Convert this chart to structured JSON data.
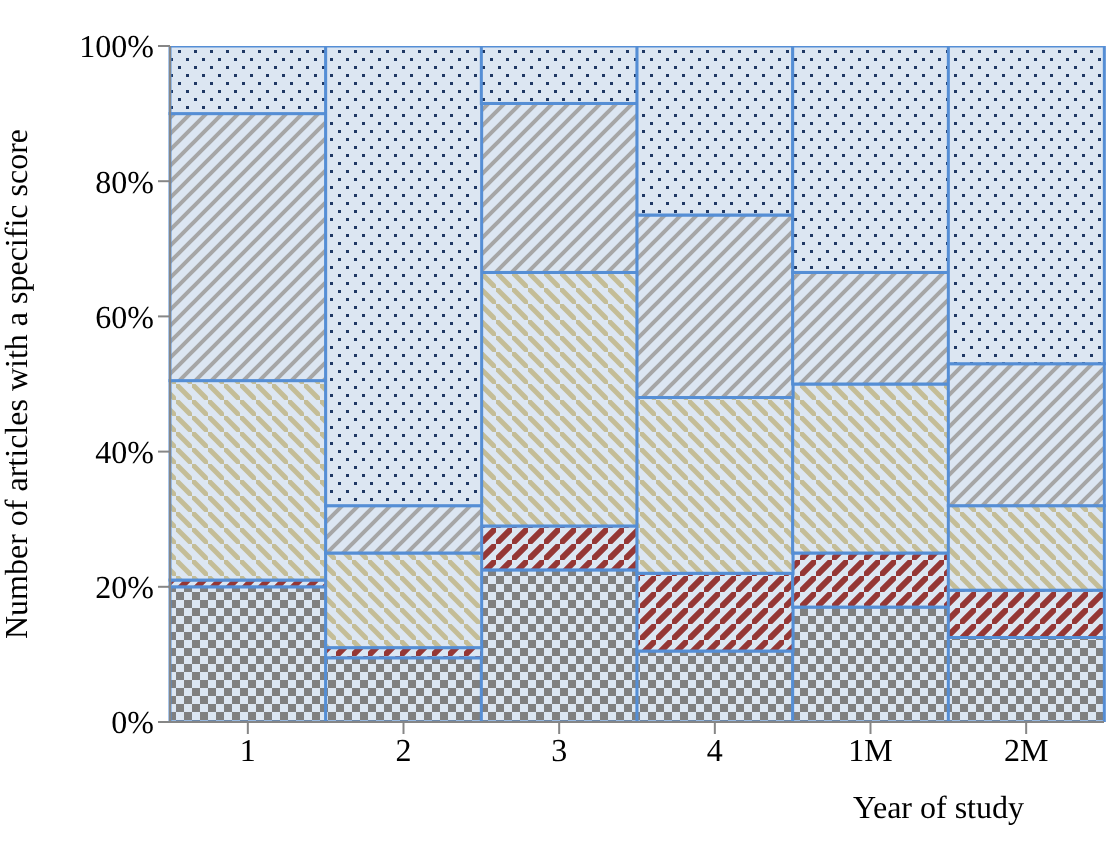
{
  "chart_data": {
    "type": "bar",
    "stacked": true,
    "xlabel": "Year of study",
    "ylabel": "Number of articles with a specific score",
    "categories": [
      "1",
      "2",
      "3",
      "4",
      "1M",
      "2M"
    ],
    "series": [
      {
        "color": "#808080",
        "values": [
          20,
          9.5,
          22.5,
          10.5,
          17,
          12.5
        ]
      },
      {
        "color": "#953735",
        "values": [
          1,
          1.5,
          6.5,
          11.5,
          8,
          7
        ]
      },
      {
        "color": "#c4bd97",
        "values": [
          29.5,
          14,
          37.5,
          26,
          25,
          12.5
        ]
      },
      {
        "color": "#a6a6a6",
        "values": [
          39.5,
          7,
          25,
          27,
          16.5,
          21
        ]
      },
      {
        "color": "#1f3864",
        "values": [
          10,
          68,
          8.5,
          25,
          33.5,
          47
        ]
      }
    ],
    "ylim": [
      0,
      100
    ],
    "yticks": [
      {
        "value": 0,
        "label": "0%"
      },
      {
        "value": 20,
        "label": "20%"
      },
      {
        "value": 40,
        "label": "40%"
      },
      {
        "value": 60,
        "label": "60%"
      },
      {
        "value": 80,
        "label": "80%"
      },
      {
        "value": 100,
        "label": "100%"
      }
    ],
    "grid": false,
    "legend": false
  }
}
